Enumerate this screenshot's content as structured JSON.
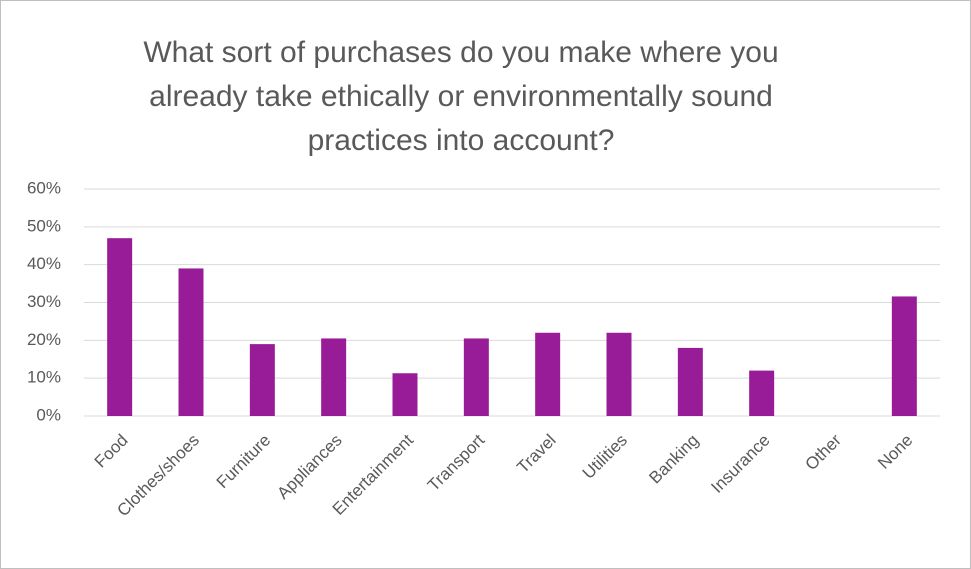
{
  "chart_data": {
    "type": "bar",
    "title": "What sort of purchases do you make where you already take ethically or environmentally sound practices into account?",
    "categories": [
      "Food",
      "Clothes/shoes",
      "Furniture",
      "Appliances",
      "Entertainment",
      "Transport",
      "Travel",
      "Utilities",
      "Banking",
      "Insurance",
      "Other",
      "None"
    ],
    "values": [
      47,
      39,
      19,
      20.5,
      11.3,
      20.5,
      22,
      22,
      18,
      12,
      0,
      31.6
    ],
    "color": "#981c98",
    "ylim": [
      0,
      60
    ],
    "yticks": [
      {
        "value": 0,
        "label": "0%"
      },
      {
        "value": 10,
        "label": "10%"
      },
      {
        "value": 20,
        "label": "20%"
      },
      {
        "value": 30,
        "label": "30%"
      },
      {
        "value": 40,
        "label": "40%"
      },
      {
        "value": 50,
        "label": "50%"
      },
      {
        "value": 60,
        "label": "60%"
      }
    ],
    "grid": true
  }
}
